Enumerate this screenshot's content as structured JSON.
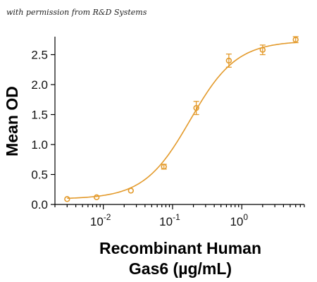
{
  "credit_text": "with permission from R&D Systems",
  "chart_data": {
    "type": "scatter",
    "xscale": "log",
    "xlim": [
      0.002,
      8
    ],
    "ylim": [
      0,
      2.8
    ],
    "ylabel": "Mean OD",
    "xlabel_line1": "Recombinant Human",
    "xlabel_line2": "Gas6 (µg/mL)",
    "y_ticks": [
      0.0,
      0.5,
      1.0,
      1.5,
      2.0,
      2.5
    ],
    "y_tick_labels": [
      "0.0",
      "0.5",
      "1.0",
      "1.5",
      "2.0",
      "2.5"
    ],
    "x_major_ticks": [
      0.01,
      0.1,
      1
    ],
    "x_tick_labels": [
      {
        "base": "10",
        "exp": "-2"
      },
      {
        "base": "10",
        "exp": "-1"
      },
      {
        "base": "10",
        "exp": "0"
      }
    ],
    "grid": false,
    "color": "#e39a2b",
    "points": [
      {
        "x": 0.003,
        "y": 0.09,
        "err": 0.02
      },
      {
        "x": 0.008,
        "y": 0.12,
        "err": 0.02
      },
      {
        "x": 0.025,
        "y": 0.23,
        "err": 0.02
      },
      {
        "x": 0.075,
        "y": 0.63,
        "err": 0.04
      },
      {
        "x": 0.22,
        "y": 1.61,
        "err": 0.11
      },
      {
        "x": 0.65,
        "y": 2.4,
        "err": 0.11
      },
      {
        "x": 2.0,
        "y": 2.58,
        "err": 0.08
      },
      {
        "x": 6.0,
        "y": 2.75,
        "err": 0.05
      }
    ],
    "fit": {
      "bottom": 0.09,
      "top": 2.73,
      "ec50": 0.18,
      "hill": 1.3
    }
  }
}
